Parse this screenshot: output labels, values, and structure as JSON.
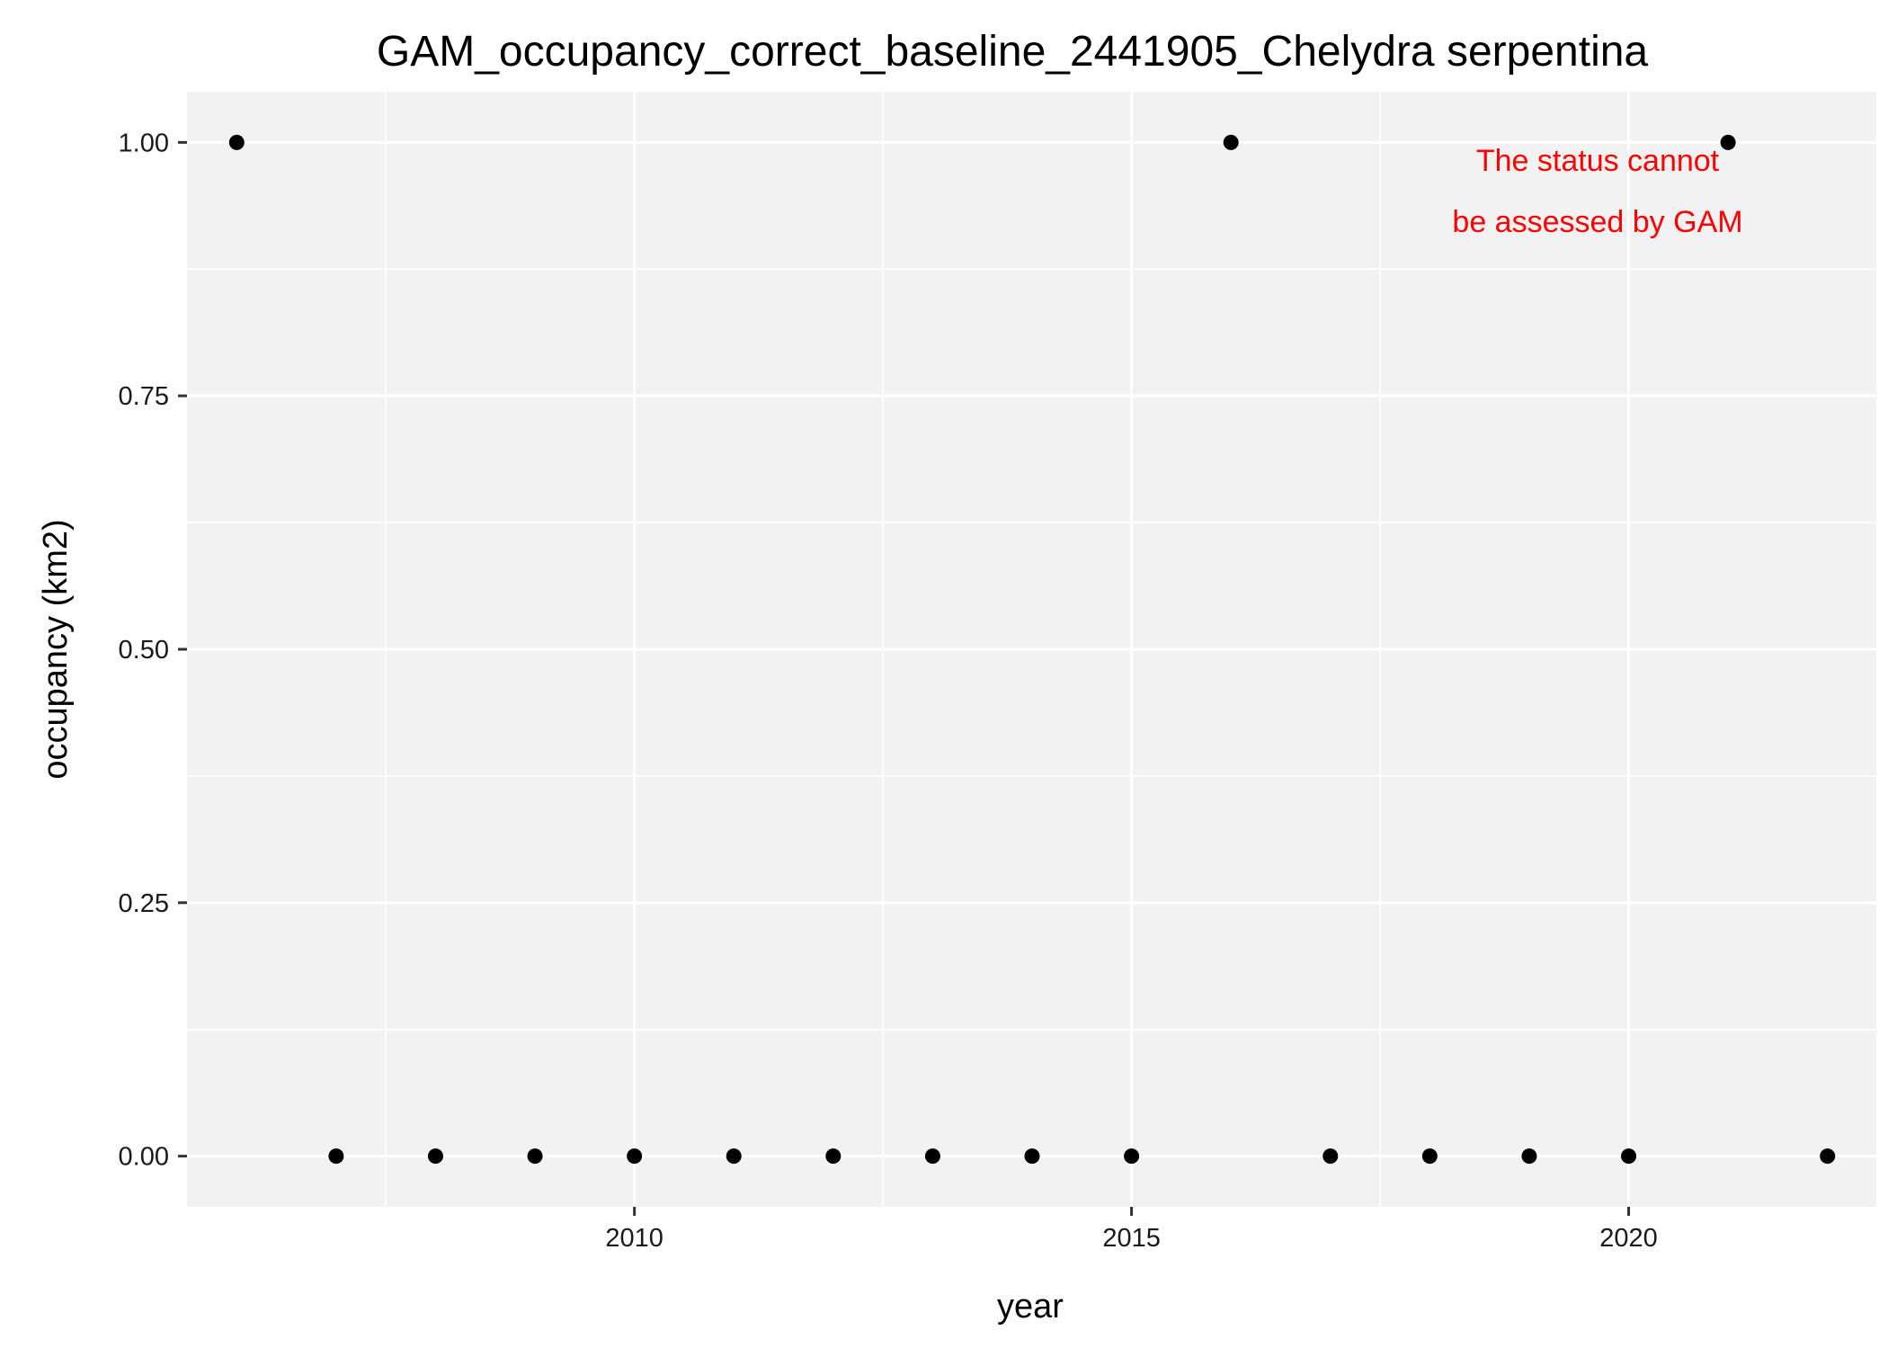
{
  "chart_data": {
    "type": "scatter",
    "title": "GAM_occupancy_correct_baseline_2441905_Chelydra serpentina",
    "xlabel": "year",
    "ylabel": "occupancy (km2)",
    "xlim": [
      2005.5,
      2022.5
    ],
    "ylim": [
      -0.05,
      1.05
    ],
    "x_ticks": [
      2010,
      2015,
      2020
    ],
    "x_tick_labels": [
      "2010",
      "2015",
      "2020"
    ],
    "y_ticks": [
      0,
      0.25,
      0.5,
      0.75,
      1
    ],
    "y_tick_labels": [
      "0.00",
      "0.25",
      "0.50",
      "0.75",
      "1.00"
    ],
    "grid": true,
    "series": [
      {
        "x": [
          2006,
          2007,
          2008,
          2009,
          2010,
          2011,
          2012,
          2013,
          2014,
          2015,
          2016,
          2017,
          2018,
          2019,
          2020,
          2021,
          2022
        ],
        "y": [
          1,
          0,
          0,
          0,
          0,
          0,
          0,
          0,
          0,
          0,
          1,
          0,
          0,
          0,
          0,
          1,
          0
        ]
      }
    ],
    "annotation": {
      "lines": [
        "The status cannot",
        "be assessed by GAM"
      ],
      "color": "#ff0000",
      "placement": "top-right"
    },
    "colors": {
      "panel_background": "#f2f2f2",
      "grid_major": "#ffffff",
      "grid_minor": "#ffffff",
      "points": "#000000"
    }
  }
}
